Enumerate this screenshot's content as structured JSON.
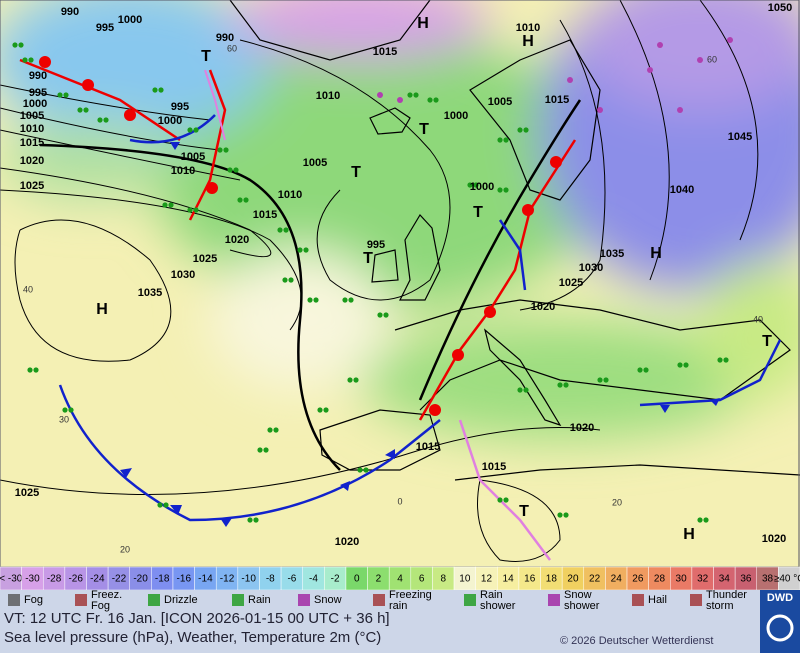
{
  "map": {
    "isobar_labels": [
      990,
      1000,
      995,
      990,
      1015,
      1010,
      1050,
      990,
      995,
      1000,
      1005,
      1010,
      1015,
      1020,
      1025,
      995,
      1000,
      1005,
      1010,
      1010,
      1005,
      1000,
      1015,
      1045,
      1040,
      1005,
      1010,
      1015,
      1020,
      1025,
      1030,
      1035,
      1000,
      995,
      1035,
      1030,
      1025,
      1020,
      1020,
      1015,
      1015,
      1025,
      1020,
      1020
    ],
    "pressure_centers": [
      "H",
      "H",
      "T",
      "T",
      "T",
      "H",
      "T",
      "T",
      "H",
      "T",
      "T",
      "H"
    ],
    "temperature_labels": [
      40,
      60,
      30,
      20,
      40,
      60,
      20,
      0
    ]
  },
  "temperature_scale": {
    "labels": [
      "< -30",
      -30,
      -28,
      -26,
      -24,
      -22,
      -20,
      -18,
      -16,
      -14,
      -12,
      -10,
      -8,
      -6,
      -4,
      -2,
      0,
      2,
      4,
      6,
      8,
      10,
      12,
      14,
      16,
      18,
      20,
      22,
      24,
      26,
      28,
      30,
      32,
      34,
      36,
      38,
      "≥40 °C"
    ],
    "colors": [
      "#c8a0e0",
      "#d7a0e8",
      "#c89ae6",
      "#b894e6",
      "#a48ee6",
      "#9690e6",
      "#8a8ee8",
      "#7e8ef0",
      "#7896f2",
      "#78a6f2",
      "#80b4f2",
      "#8cc4f0",
      "#90d2ee",
      "#98dcea",
      "#a0e6e0",
      "#a8eccc",
      "#7ad86a",
      "#8cde6e",
      "#a0e272",
      "#b4e67a",
      "#c8ea84",
      "#f4f4d0",
      "#f6f2b8",
      "#f6eea0",
      "#f4e88a",
      "#f2de74",
      "#f0d060",
      "#f0c060",
      "#f0ae60",
      "#f09a60",
      "#ee8a60",
      "#ea7a66",
      "#e06c6c",
      "#d46470",
      "#c86070",
      "#b87070",
      "#d0d0d0"
    ]
  },
  "weather_legend": [
    [
      "Fog"
    ],
    [
      "Freez.",
      "Fog"
    ],
    [
      "Drizzle"
    ],
    [
      "Rain"
    ],
    [
      "Snow"
    ],
    [
      "Freezing",
      "rain"
    ],
    [
      "Rain",
      "shower"
    ],
    [
      "Snow",
      "shower"
    ],
    [
      "Hail"
    ],
    [
      "Thunder",
      "storm"
    ]
  ],
  "footer": {
    "valid_time": "VT: 12 UTC Fr.  16 Jan. [ICON 2026-01-15  00 UTC + 36 h]",
    "description": "Sea level pressure (hPa), Weather, Temperature 2m (°C)",
    "copyright": "© 2026 Deutscher Wetterdienst",
    "logo": "DWD"
  }
}
